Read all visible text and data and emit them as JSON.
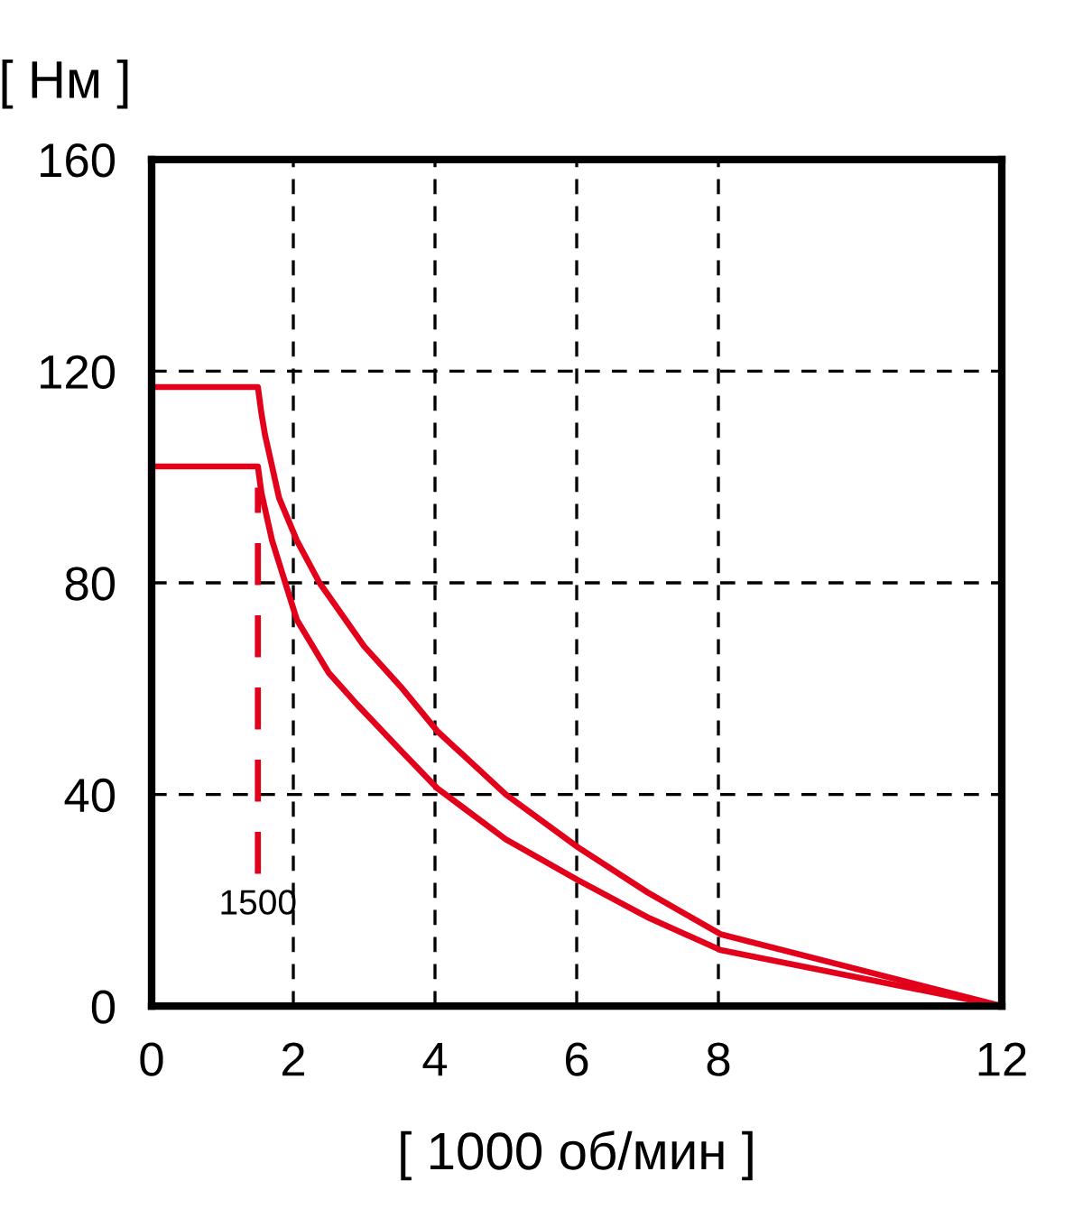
{
  "chart_data": {
    "type": "line",
    "ylabel": "[ Нм ]",
    "xlabel": "[ 1000 об/мин ]",
    "xlim": [
      0,
      12
    ],
    "xticks": [
      0,
      2,
      4,
      6,
      8,
      12
    ],
    "ylim": [
      0,
      160
    ],
    "yticks": [
      0,
      40,
      80,
      120,
      160
    ],
    "grid": true,
    "line_style": "solid",
    "series": [
      {
        "color": "#e3001b",
        "x": [
          0,
          1.5,
          1.55,
          1.6,
          1.8,
          2.05,
          2.37,
          3,
          3.54,
          4.03,
          5,
          6.02,
          7,
          8.03,
          12
        ],
        "values": [
          117,
          117,
          112,
          108,
          96,
          88,
          80,
          68,
          60,
          52,
          40,
          30,
          21.5,
          13.6,
          0
        ]
      },
      {
        "color": "#e3001b",
        "x": [
          0,
          1.5,
          1.55,
          1.7,
          2.05,
          2.5,
          2.9,
          3.54,
          4.03,
          5,
          6.02,
          7,
          8.03,
          12
        ],
        "values": [
          102,
          102,
          97,
          88,
          73,
          63,
          57,
          48,
          41.2,
          31.5,
          23.8,
          16.8,
          10.6,
          0
        ]
      },
      {
        "color": "#e3001b",
        "line_style": "dashed",
        "x": [
          1.5,
          1.5
        ],
        "values": [
          25,
          98
        ]
      }
    ],
    "annotations": [
      {
        "text": "1500",
        "x": 1.5,
        "y": 25
      }
    ]
  }
}
